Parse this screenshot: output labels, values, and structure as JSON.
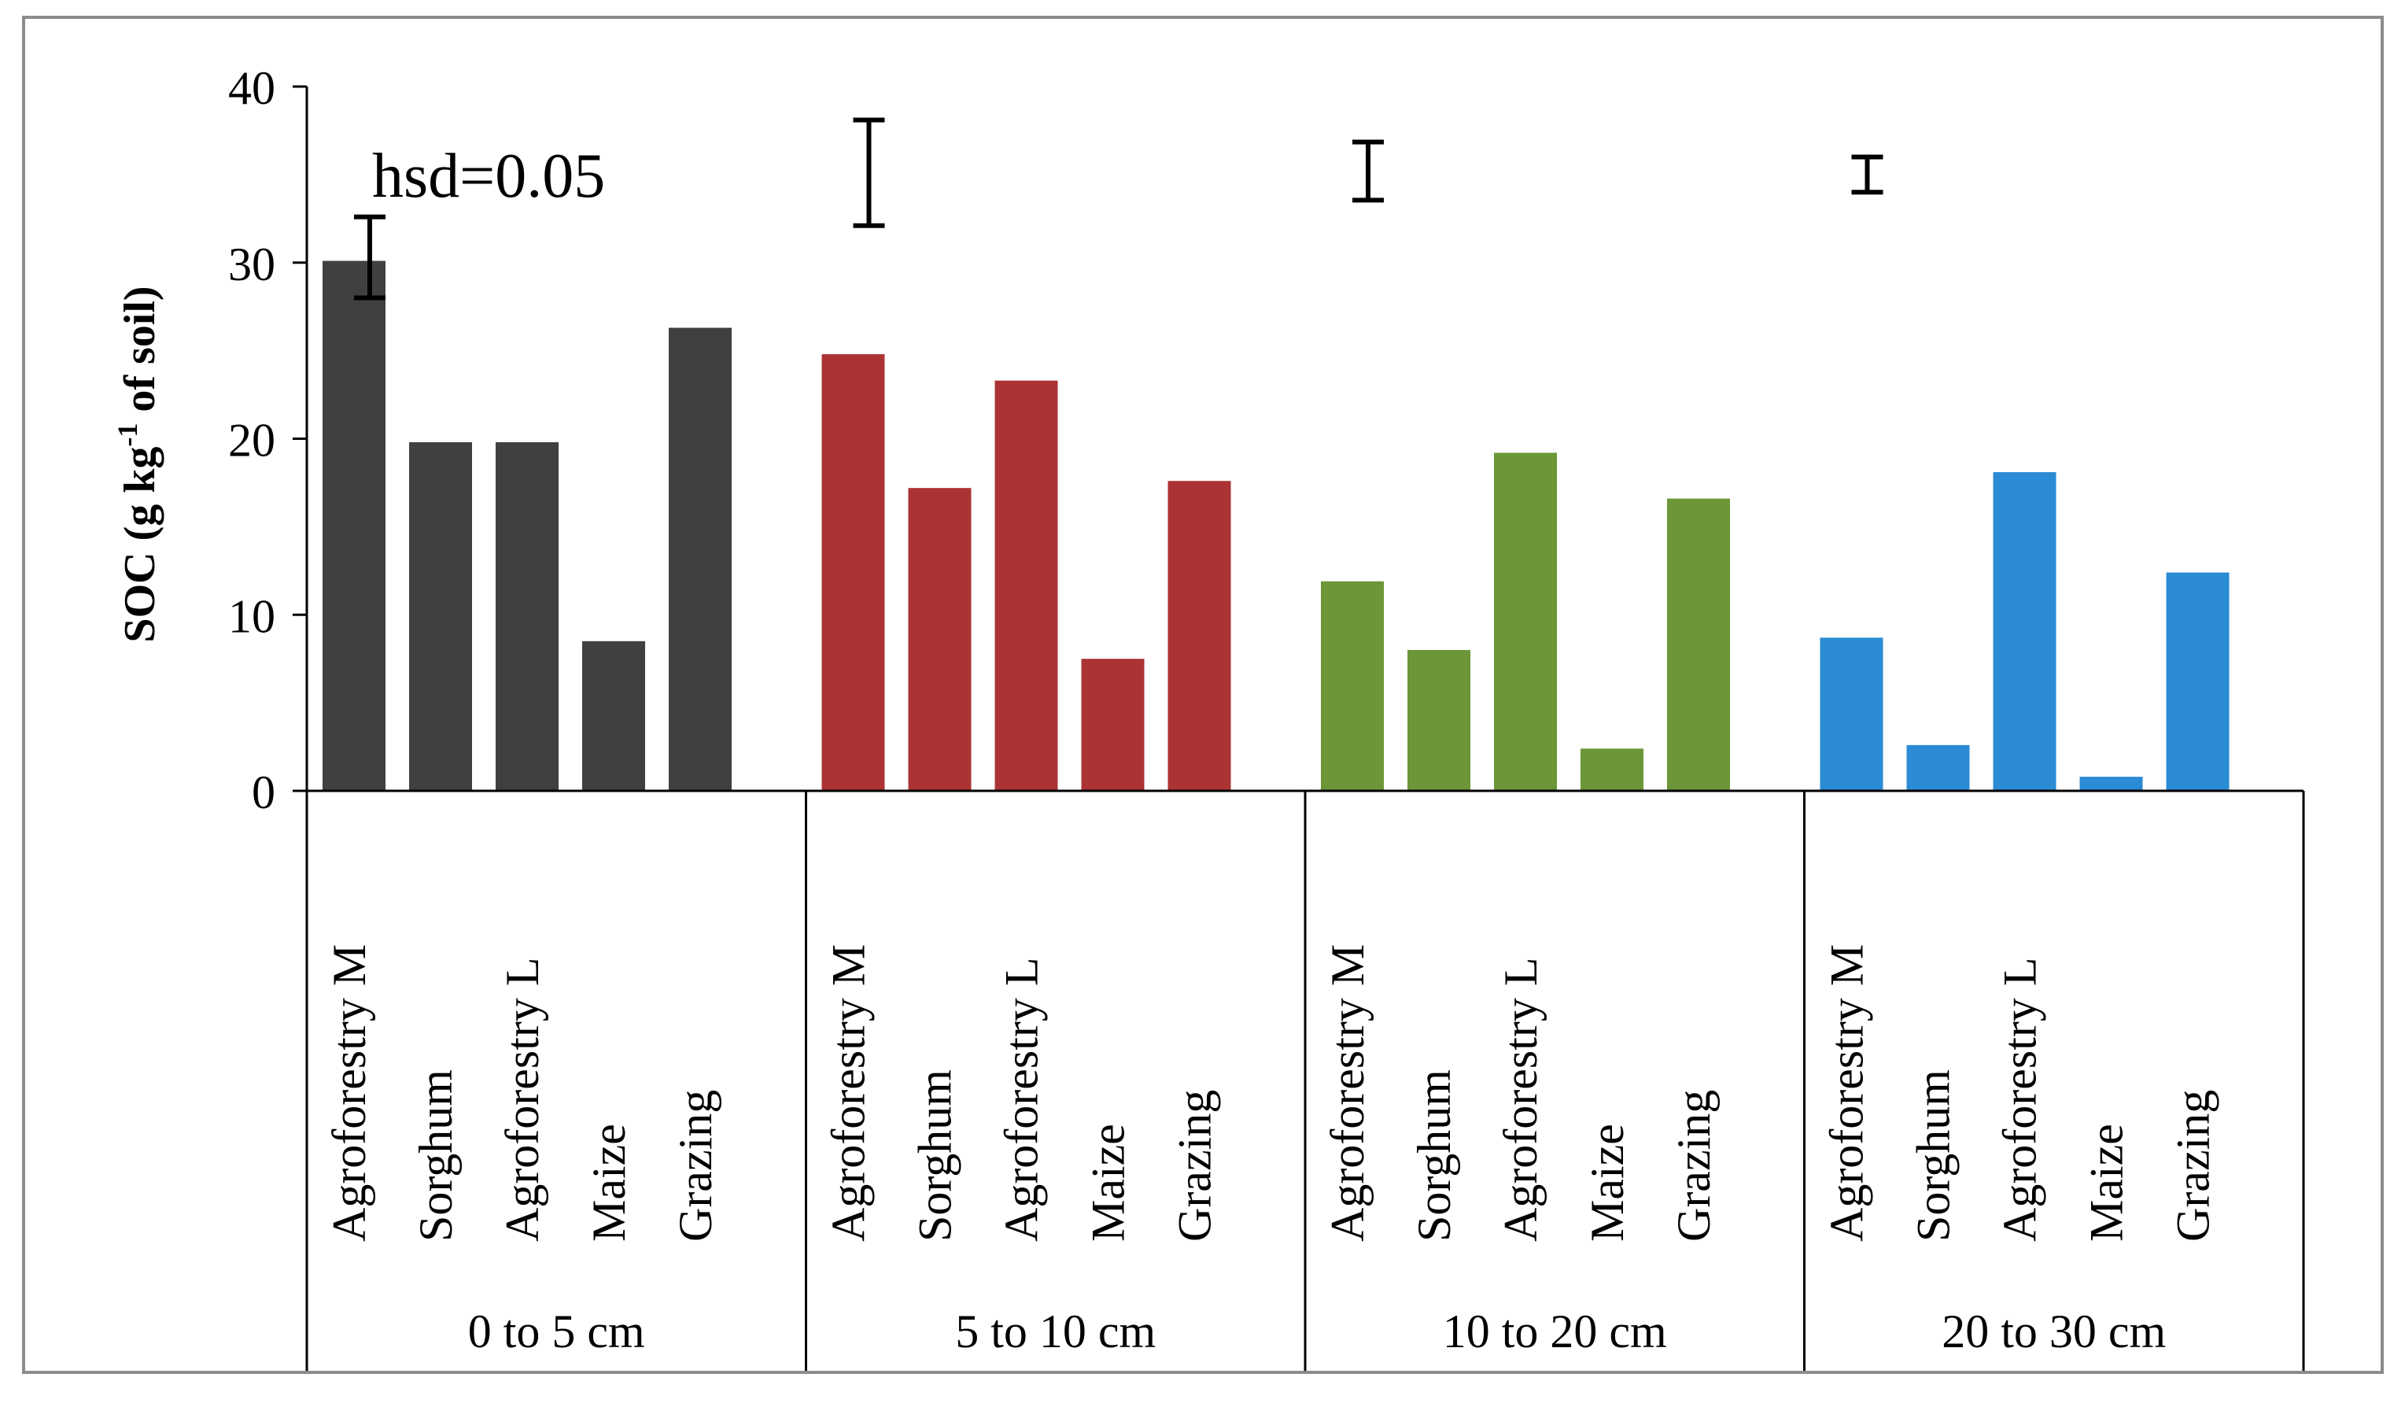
{
  "chart_data": {
    "type": "bar",
    "ylabel": {
      "prefix": "SOC (g kg",
      "superscript": "-1",
      "suffix": " of soil)"
    },
    "ylim": [
      0,
      40
    ],
    "yticks": [
      "0",
      "10",
      "20",
      "30",
      "40"
    ],
    "ytick_values": [
      0,
      10,
      20,
      30,
      40
    ],
    "grid": false,
    "legend": "none",
    "hsd_label": "hsd=0.05",
    "categories": [
      "Agroforestry M",
      "Sorghum",
      "Agroforestry L",
      "Maize",
      "Grazing"
    ],
    "groups": [
      {
        "name": "0 to 5 cm",
        "color": "#404040",
        "values": [
          30.1,
          19.8,
          19.8,
          8.5,
          26.3
        ],
        "hsd": 4.6,
        "hsd_center": 30.3
      },
      {
        "name": "5 to 10 cm",
        "color": "#ab3334",
        "values": [
          24.8,
          17.2,
          23.3,
          7.5,
          17.6
        ],
        "hsd": 6.0,
        "hsd_center": 35.1
      },
      {
        "name": "10 to 20 cm",
        "color": "#6c9637",
        "values": [
          11.9,
          8.0,
          19.2,
          2.4,
          16.6
        ],
        "hsd": 3.3,
        "hsd_center": 35.2
      },
      {
        "name": "20 to 30 cm",
        "color": "#2b8bd4",
        "values": [
          8.7,
          2.6,
          18.1,
          0.8,
          12.4
        ],
        "hsd": 2.0,
        "hsd_center": 35.0
      }
    ]
  }
}
